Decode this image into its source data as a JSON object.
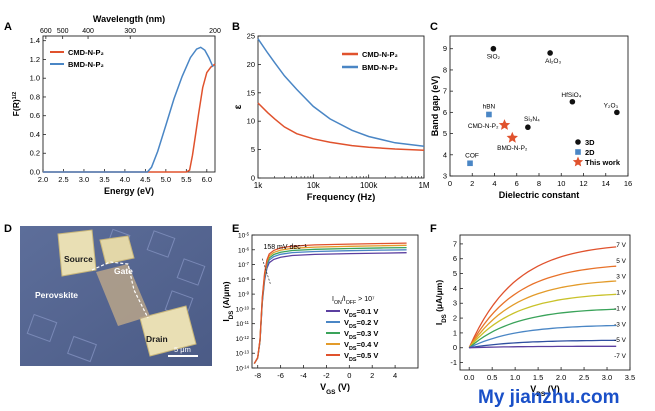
{
  "figure": {
    "panel_labels": [
      "A",
      "B",
      "C",
      "D",
      "E",
      "F"
    ],
    "watermark": "My jianzhu.com"
  },
  "chart_data": [
    {
      "panel": "A",
      "type": "line",
      "xlabel": "Energy (eV)",
      "ylabel": "F(R)",
      "ylabel_superscript": "1/2",
      "top_axis_label": "Wavelength (nm)",
      "top_ticks": [
        "600",
        "500",
        "400",
        "300",
        "200"
      ],
      "top_tick_energies": [
        2.07,
        2.48,
        3.1,
        4.13,
        6.2
      ],
      "xlim": [
        2.0,
        6.2
      ],
      "xticks": [
        2.0,
        2.5,
        3.0,
        3.5,
        4.0,
        4.5,
        5.0,
        5.5,
        6.0
      ],
      "ylim": [
        0,
        1.45
      ],
      "yticks": [
        0.0,
        0.2,
        0.4,
        0.6,
        0.8,
        1.0,
        1.2,
        1.4
      ],
      "legend_position": "top-left",
      "series": [
        {
          "name": "CMD-N-P₂",
          "color": "#e0522d",
          "x": [
            2.0,
            5.5,
            5.58,
            5.65,
            5.72,
            5.8,
            5.9,
            6.0,
            6.1,
            6.2
          ],
          "y": [
            0,
            0,
            0.02,
            0.18,
            0.38,
            0.62,
            0.9,
            1.06,
            1.12,
            1.15
          ]
        },
        {
          "name": "BMD-N-P₂",
          "color": "#4a86c5",
          "x": [
            2.0,
            4.55,
            4.65,
            4.8,
            5.0,
            5.2,
            5.4,
            5.6,
            5.75,
            5.85,
            5.95,
            6.05,
            6.15
          ],
          "y": [
            0,
            0,
            0.05,
            0.22,
            0.5,
            0.78,
            1.02,
            1.22,
            1.31,
            1.33,
            1.3,
            1.22,
            1.12
          ]
        }
      ]
    },
    {
      "panel": "B",
      "type": "line",
      "xlabel": "Frequency (Hz)",
      "ylabel": "ε",
      "xscale": "log",
      "xlim": [
        1000,
        1000000
      ],
      "xticks": [
        "1k",
        "10k",
        "100k",
        "1M"
      ],
      "ylim": [
        0,
        25
      ],
      "yticks": [
        0,
        5,
        10,
        15,
        20,
        25
      ],
      "legend_position": "top-right",
      "series": [
        {
          "name": "CMD-N-P₂",
          "color": "#e0522d",
          "x": [
            1000,
            1500,
            2000,
            3000,
            5000,
            10000,
            20000,
            50000,
            100000,
            300000,
            1000000
          ],
          "y": [
            13.2,
            11.5,
            10.4,
            9.0,
            7.8,
            6.9,
            6.3,
            5.7,
            5.4,
            5.1,
            4.9
          ]
        },
        {
          "name": "BMD-N-P₂",
          "color": "#4a86c5",
          "x": [
            1000,
            1500,
            2000,
            3000,
            5000,
            10000,
            20000,
            50000,
            100000,
            300000,
            1000000
          ],
          "y": [
            24.5,
            22.0,
            20.3,
            18.0,
            15.6,
            12.6,
            10.4,
            8.4,
            7.3,
            6.2,
            5.6
          ]
        }
      ]
    },
    {
      "panel": "C",
      "type": "scatter",
      "xlabel": "Dielectric constant",
      "ylabel": "Band gap (eV)",
      "xlim": [
        0,
        16
      ],
      "xticks": [
        0,
        2,
        4,
        6,
        8,
        10,
        12,
        14,
        16
      ],
      "ylim": [
        3,
        9.6
      ],
      "yticks": [
        3,
        4,
        5,
        6,
        7,
        8,
        9
      ],
      "legend_position": "bottom-right",
      "legend": [
        "3D",
        "2D",
        "This work"
      ],
      "points": [
        {
          "label": "SiO₂",
          "x": 3.9,
          "y": 9.0,
          "group": "3D"
        },
        {
          "label": "Al₂O₃",
          "x": 9.0,
          "y": 8.8,
          "group": "3D"
        },
        {
          "label": "HfSiO₄",
          "x": 11.0,
          "y": 6.5,
          "group": "3D"
        },
        {
          "label": "Y₂O₃",
          "x": 15.0,
          "y": 6.0,
          "group": "3D"
        },
        {
          "label": "Si₃N₄",
          "x": 7.0,
          "y": 5.3,
          "group": "3D"
        },
        {
          "label": "hBN",
          "x": 3.5,
          "y": 5.9,
          "group": "2D"
        },
        {
          "label": "COF",
          "x": 1.8,
          "y": 3.6,
          "group": "2D"
        },
        {
          "label": "CMD-N-P₂",
          "x": 4.9,
          "y": 5.4,
          "group": "This work"
        },
        {
          "label": "BMD-N-P₂",
          "x": 5.6,
          "y": 4.8,
          "group": "This work"
        }
      ],
      "group_colors": {
        "3D": "#111111",
        "2D": "#4a86c5",
        "This work": "#e0522d"
      }
    },
    {
      "panel": "E",
      "type": "line",
      "xlabel": "V",
      "xlabel_subscript": "GS",
      "xlabel_unit": " (V)",
      "ylabel": "I",
      "ylabel_subscript": "DS",
      "ylabel_unit": " (A/μm)",
      "yscale": "log",
      "xlim": [
        -8.5,
        6
      ],
      "xticks": [
        -8,
        -6,
        -4,
        -2,
        0,
        2,
        4
      ],
      "ylim_exp": [
        -14,
        -5
      ],
      "ytick_exps": [
        -14,
        -13,
        -12,
        -11,
        -10,
        -9,
        -8,
        -7,
        -6,
        -5
      ],
      "ytick_base": "10",
      "annotations": {
        "ss": "158 mV dec⁻¹",
        "ratio": "I",
        "ratio_sub_on": "ON",
        "ratio_mid": "/I",
        "ratio_sub_off": "OFF",
        "ratio_tail": " > 10⁷"
      },
      "legend_position": "right",
      "series": [
        {
          "name_prefix": "V",
          "name_sub": "DS",
          "name": "=0.1 V",
          "color": "#5b3fa0",
          "top": -6.2
        },
        {
          "name_prefix": "V",
          "name_sub": "DS",
          "name": "=0.2 V",
          "color": "#4a86c5",
          "top": -6.0
        },
        {
          "name_prefix": "V",
          "name_sub": "DS",
          "name": "=0.3 V",
          "color": "#3aa35a",
          "top": -5.85
        },
        {
          "name_prefix": "V",
          "name_sub": "DS",
          "name": "=0.4 V",
          "color": "#e39b2a",
          "top": -5.7
        },
        {
          "name_prefix": "V",
          "name_sub": "DS",
          "name": "=0.5 V",
          "color": "#e0522d",
          "top": -5.55
        }
      ],
      "curve_x": [
        -8.3,
        -8.0,
        -7.8,
        -7.6,
        -7.4,
        -7.2,
        -7.0,
        -6.6,
        -6.0,
        -5.0,
        -3.0,
        0,
        3,
        5
      ],
      "curve_shape": [
        0.0,
        0.05,
        0.2,
        0.55,
        0.75,
        0.86,
        0.91,
        0.94,
        0.96,
        0.975,
        0.985,
        0.992,
        0.997,
        1.0
      ],
      "curve_floor": -13.7
    },
    {
      "panel": "F",
      "type": "line",
      "xlabel": "V",
      "xlabel_subscript": "DS",
      "xlabel_unit": " (V)",
      "ylabel": "I",
      "ylabel_subscript": "DS",
      "ylabel_unit": " (μA/μm)",
      "xlim": [
        -0.2,
        3.5
      ],
      "xticks": [
        0.0,
        0.5,
        1.0,
        1.5,
        2.0,
        2.5,
        3.0,
        3.5
      ],
      "ylim": [
        -1.5,
        7.6
      ],
      "yticks": [
        -1,
        0,
        1,
        2,
        3,
        4,
        5,
        6,
        7
      ],
      "legend_position": "right",
      "series": [
        {
          "name": "7 V",
          "color": "#e0522d",
          "end": 6.8
        },
        {
          "name": "5 V",
          "color": "#e8722a",
          "end": 5.5
        },
        {
          "name": "3 V",
          "color": "#e39b2a",
          "end": 4.5
        },
        {
          "name": "1 V",
          "color": "#c9c22a",
          "end": 3.6
        },
        {
          "name": "-1 V",
          "color": "#3aa35a",
          "end": 2.6
        },
        {
          "name": "-3 V",
          "color": "#4a86c5",
          "end": 1.5
        },
        {
          "name": "-5 V",
          "color": "#2f4fa0",
          "end": 0.5
        },
        {
          "name": "-7 V",
          "color": "#5b3fa0",
          "end": 0.1
        }
      ]
    }
  ],
  "micrograph": {
    "panel": "D",
    "labels": {
      "source": "Source",
      "gate": "Gate",
      "perovskite": "Perovskite",
      "drain": "Drain",
      "scale": "5 μm"
    }
  }
}
